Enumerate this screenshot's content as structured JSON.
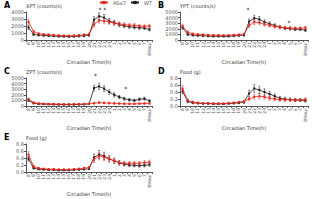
{
  "chart_data": [
    {
      "type": "line",
      "title": "A",
      "x_label": "Circadian Time(h)",
      "y_label": "XPT (counts/s)",
      "categories": [
        "8",
        "9",
        "10",
        "11",
        "12",
        "13",
        "14",
        "15",
        "16",
        "17",
        "18",
        "19",
        "20",
        "21",
        "22",
        "23",
        "24",
        "1",
        "2",
        "3",
        "4",
        "5",
        "6",
        "7",
        "8Hour"
      ],
      "series": [
        {
          "name": "ASα7",
          "color": "#e8231a",
          "marker": "square",
          "values": [
            2600,
            1200,
            900,
            800,
            750,
            700,
            650,
            620,
            600,
            620,
            680,
            750,
            820,
            2200,
            2800,
            2700,
            2600,
            2400,
            2300,
            2200,
            2100,
            2100,
            2000,
            1950,
            2000
          ],
          "errors": [
            350,
            200,
            150,
            130,
            120,
            110,
            100,
            100,
            100,
            110,
            120,
            130,
            150,
            350,
            400,
            380,
            320,
            300,
            280,
            260,
            250,
            240,
            230,
            230,
            250
          ]
        },
        {
          "name": "WT",
          "color": "#1a1a1a",
          "marker": "square",
          "values": [
            1800,
            800,
            700,
            650,
            600,
            560,
            520,
            500,
            480,
            500,
            550,
            600,
            680,
            2900,
            3400,
            3200,
            2700,
            2500,
            2200,
            2000,
            1900,
            1800,
            1750,
            1700,
            1500
          ],
          "errors": [
            280,
            160,
            130,
            110,
            100,
            90,
            85,
            80,
            80,
            85,
            100,
            110,
            130,
            420,
            480,
            450,
            380,
            330,
            290,
            260,
            240,
            230,
            220,
            210,
            200
          ]
        }
      ],
      "ylim": [
        0,
        4000
      ],
      "yticks": [
        0,
        1000,
        2000,
        3000,
        4000
      ],
      "grid": false,
      "legend": "upper right",
      "annotations": [
        "* *"
      ]
    },
    {
      "type": "line",
      "title": "B",
      "x_label": "Circadian Time(h)",
      "y_label": "YPT (counts/s)",
      "categories": [
        "8",
        "9",
        "10",
        "11",
        "12",
        "13",
        "14",
        "15",
        "16",
        "17",
        "18",
        "19",
        "20",
        "21",
        "22",
        "23",
        "24",
        "1",
        "2",
        "3",
        "4",
        "5",
        "6",
        "7",
        "8Hour"
      ],
      "series": [
        {
          "name": "ASα7",
          "color": "#e8231a",
          "marker": "square",
          "values": [
            2500,
            1400,
            1100,
            1000,
            950,
            900,
            850,
            840,
            820,
            840,
            900,
            950,
            1050,
            2600,
            3200,
            3100,
            2800,
            2600,
            2400,
            2300,
            2200,
            2150,
            2100,
            2100,
            2200
          ],
          "errors": [
            300,
            220,
            160,
            140,
            130,
            120,
            110,
            110,
            110,
            120,
            130,
            140,
            160,
            380,
            420,
            400,
            350,
            310,
            280,
            260,
            250,
            240,
            230,
            230,
            260
          ]
        },
        {
          "name": "WT",
          "color": "#1a1a1a",
          "marker": "square",
          "values": [
            2200,
            1000,
            850,
            800,
            750,
            700,
            660,
            660,
            650,
            660,
            740,
            800,
            870,
            3300,
            3900,
            3700,
            3200,
            2900,
            2600,
            2300,
            2100,
            2000,
            1900,
            1900,
            1750
          ],
          "errors": [
            260,
            170,
            130,
            120,
            110,
            100,
            90,
            90,
            90,
            100,
            110,
            120,
            140,
            450,
            520,
            490,
            400,
            350,
            300,
            270,
            250,
            240,
            230,
            220,
            210
          ]
        }
      ],
      "ylim": [
        0,
        5000
      ],
      "yticks": [
        0,
        1000,
        2000,
        3000,
        4000,
        5000
      ],
      "grid": false,
      "annotations": [
        "*",
        "*"
      ]
    },
    {
      "type": "line",
      "title": "C",
      "x_label": "Circadian Time(h)",
      "y_label": "ZPT (counts/s)",
      "categories": [
        "8",
        "9",
        "10",
        "11",
        "12",
        "13",
        "14",
        "15",
        "16",
        "17",
        "18",
        "19",
        "20",
        "21",
        "22",
        "23",
        "24",
        "1",
        "2",
        "3",
        "4",
        "5",
        "6",
        "7",
        "8Hour"
      ],
      "series": [
        {
          "name": "ASα7",
          "color": "#e8231a",
          "marker": "square",
          "values": [
            1200,
            600,
            450,
            400,
            360,
            340,
            320,
            310,
            300,
            320,
            340,
            370,
            400,
            500,
            600,
            550,
            520,
            480,
            440,
            400,
            380,
            380,
            420,
            460,
            450
          ],
          "errors": [
            200,
            120,
            90,
            80,
            75,
            70,
            65,
            65,
            65,
            70,
            75,
            80,
            90,
            150,
            180,
            170,
            160,
            150,
            140,
            130,
            120,
            120,
            130,
            140,
            140
          ]
        },
        {
          "name": "WT",
          "color": "#1a1a1a",
          "marker": "square",
          "values": [
            1000,
            500,
            380,
            340,
            310,
            290,
            270,
            260,
            250,
            260,
            280,
            310,
            350,
            3200,
            3500,
            3100,
            2500,
            2000,
            1600,
            1300,
            1100,
            1000,
            1200,
            1300,
            900
          ],
          "errors": [
            180,
            110,
            80,
            70,
            65,
            60,
            55,
            55,
            55,
            60,
            65,
            70,
            80,
            500,
            550,
            500,
            420,
            360,
            300,
            260,
            230,
            210,
            240,
            260,
            220
          ]
        }
      ],
      "ylim": [
        0,
        5000
      ],
      "yticks": [
        0,
        1000,
        2000,
        3000,
        4000,
        5000
      ],
      "grid": false,
      "annotations": [
        "*",
        "*"
      ]
    },
    {
      "type": "line",
      "title": "D",
      "x_label": "Circadian Time(h)",
      "y_label": "Food (g)",
      "categories": [
        "8",
        "9",
        "10",
        "11",
        "12",
        "13",
        "14",
        "15",
        "16",
        "17",
        "18",
        "19",
        "20",
        "21",
        "22",
        "23",
        "24",
        "1",
        "2",
        "3",
        "4",
        "5",
        "6",
        "7",
        "8Hour"
      ],
      "series": [
        {
          "name": "ASα7",
          "color": "#e8231a",
          "marker": "square",
          "values": [
            0.5,
            0.16,
            0.11,
            0.09,
            0.08,
            0.08,
            0.07,
            0.07,
            0.07,
            0.08,
            0.09,
            0.11,
            0.13,
            0.2,
            0.26,
            0.28,
            0.26,
            0.22,
            0.2,
            0.18,
            0.18,
            0.18,
            0.17,
            0.17,
            0.19
          ],
          "errors": [
            0.08,
            0.04,
            0.03,
            0.025,
            0.022,
            0.02,
            0.018,
            0.018,
            0.018,
            0.02,
            0.022,
            0.025,
            0.03,
            0.055,
            0.07,
            0.07,
            0.065,
            0.055,
            0.05,
            0.045,
            0.043,
            0.042,
            0.04,
            0.04,
            0.045
          ]
        },
        {
          "name": "WT",
          "color": "#1a1a1a",
          "marker": "square",
          "values": [
            0.42,
            0.13,
            0.09,
            0.08,
            0.07,
            0.07,
            0.06,
            0.06,
            0.06,
            0.07,
            0.08,
            0.09,
            0.11,
            0.36,
            0.5,
            0.46,
            0.4,
            0.34,
            0.28,
            0.22,
            0.2,
            0.18,
            0.17,
            0.17,
            0.15
          ],
          "errors": [
            0.07,
            0.035,
            0.025,
            0.022,
            0.02,
            0.018,
            0.016,
            0.016,
            0.016,
            0.018,
            0.022,
            0.025,
            0.03,
            0.09,
            0.11,
            0.1,
            0.09,
            0.075,
            0.065,
            0.055,
            0.05,
            0.045,
            0.042,
            0.042,
            0.038
          ]
        }
      ],
      "ylim": [
        0,
        0.8
      ],
      "yticks": [
        {
          "value": 0,
          "label": "0.0"
        },
        0.2,
        0.4,
        0.6,
        0.8
      ],
      "grid": false
    },
    {
      "type": "line",
      "title": "E",
      "x_label": "Circadian Time(h)",
      "y_label": "Food (g)",
      "categories": [
        "8",
        "9",
        "10",
        "11",
        "12",
        "13",
        "14",
        "15",
        "16",
        "17",
        "18",
        "19",
        "20",
        "21",
        "22",
        "23",
        "24",
        "1",
        "2",
        "3",
        "4",
        "5",
        "6",
        "7",
        "8Hour"
      ],
      "series": [
        {
          "name": "ASα7",
          "color": "#e8231a",
          "marker": "square",
          "values": [
            0.5,
            0.16,
            0.11,
            0.09,
            0.08,
            0.08,
            0.07,
            0.07,
            0.07,
            0.08,
            0.09,
            0.11,
            0.13,
            0.36,
            0.45,
            0.42,
            0.37,
            0.32,
            0.27,
            0.25,
            0.25,
            0.25,
            0.25,
            0.27,
            0.28
          ],
          "errors": [
            0.08,
            0.035,
            0.025,
            0.022,
            0.02,
            0.018,
            0.016,
            0.016,
            0.016,
            0.018,
            0.022,
            0.025,
            0.03,
            0.085,
            0.1,
            0.095,
            0.082,
            0.07,
            0.06,
            0.055,
            0.053,
            0.052,
            0.05,
            0.055,
            0.06
          ]
        },
        {
          "name": "WT",
          "color": "#1a1a1a",
          "marker": "square",
          "values": [
            0.38,
            0.11,
            0.08,
            0.07,
            0.06,
            0.06,
            0.05,
            0.05,
            0.05,
            0.06,
            0.07,
            0.08,
            0.09,
            0.42,
            0.5,
            0.46,
            0.38,
            0.32,
            0.26,
            0.22,
            0.2,
            0.19,
            0.18,
            0.19,
            0.21
          ],
          "errors": [
            0.065,
            0.028,
            0.02,
            0.018,
            0.016,
            0.015,
            0.013,
            0.013,
            0.013,
            0.015,
            0.018,
            0.02,
            0.024,
            0.095,
            0.115,
            0.105,
            0.088,
            0.075,
            0.062,
            0.052,
            0.048,
            0.044,
            0.042,
            0.044,
            0.048
          ]
        }
      ],
      "ylim": [
        0,
        0.8
      ],
      "yticks": [
        {
          "value": 0,
          "label": "0.0"
        },
        0.2,
        0.4,
        0.6,
        0.8
      ],
      "grid": false
    }
  ]
}
